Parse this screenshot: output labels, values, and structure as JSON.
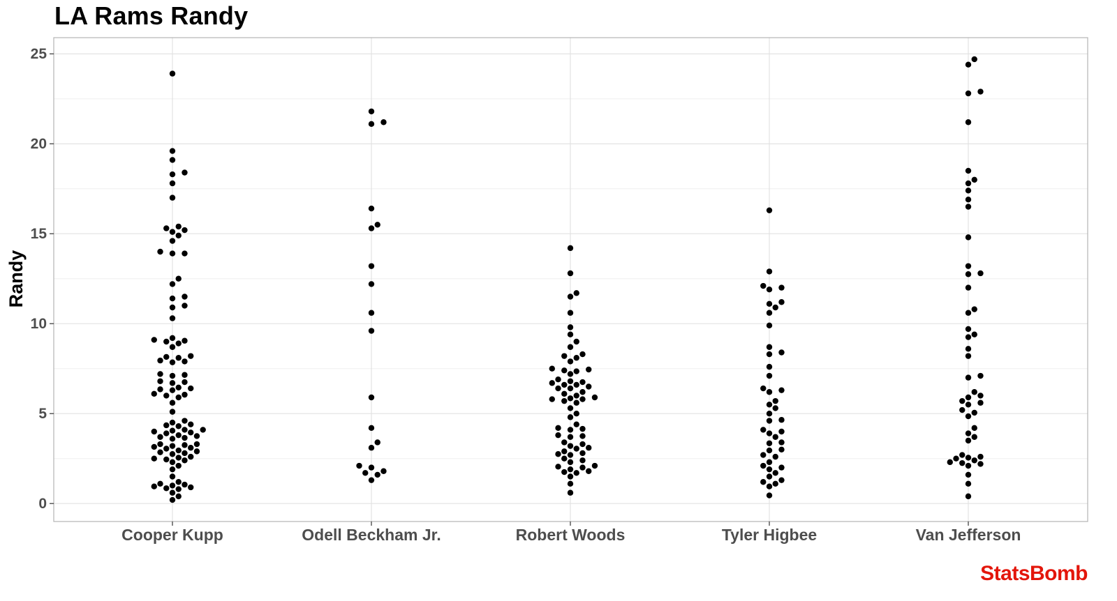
{
  "chart_data": {
    "type": "scatter",
    "title": "LA Rams Randy",
    "xlabel": "",
    "ylabel": "Randy",
    "ylim": [
      -1,
      25.9
    ],
    "yticks": [
      "0",
      "5",
      "10",
      "15",
      "20",
      "25"
    ],
    "categories": [
      "Cooper Kupp",
      "Odell Beckham Jr.",
      "Robert Woods",
      "Tyler Higbee",
      "Van Jefferson"
    ],
    "grid": true,
    "legend": "none",
    "point_color": "#000000",
    "series": [
      {
        "values": [
          23.9,
          19.6,
          19.1,
          18.4,
          18.3,
          17.8,
          17.0,
          15.4,
          15.3,
          15.2,
          15.1,
          14.9,
          14.6,
          14.0,
          13.9,
          13.9,
          12.5,
          12.2,
          11.5,
          11.4,
          11.0,
          10.9,
          10.3,
          9.2,
          9.1,
          9.05,
          9.0,
          8.9,
          8.7,
          8.2,
          8.15,
          8.1,
          7.95,
          7.9,
          7.85,
          7.2,
          7.15,
          7.1,
          6.8,
          6.75,
          6.7,
          6.45,
          6.4,
          6.35,
          6.3,
          6.1,
          6.05,
          6.0,
          5.9,
          5.6,
          5.1,
          4.6,
          4.5,
          4.4,
          4.35,
          4.3,
          4.1,
          4.1,
          4.05,
          4.0,
          3.95,
          3.9,
          3.8,
          3.75,
          3.7,
          3.65,
          3.6,
          3.3,
          3.3,
          3.25,
          3.2,
          3.15,
          3.1,
          3.05,
          2.95,
          2.9,
          2.85,
          2.8,
          2.75,
          2.6,
          2.55,
          2.5,
          2.45,
          2.4,
          2.3,
          2.1,
          1.9,
          1.5,
          1.2,
          1.1,
          1.05,
          1.0,
          0.95,
          0.9,
          0.85,
          0.8,
          0.6,
          0.4,
          0.2
        ]
      },
      {
        "values": [
          21.8,
          21.2,
          21.1,
          16.4,
          15.5,
          15.3,
          13.2,
          12.2,
          10.6,
          9.6,
          5.9,
          4.2,
          3.4,
          3.1,
          2.1,
          2.0,
          1.8,
          1.7,
          1.6,
          1.3
        ]
      },
      {
        "values": [
          14.2,
          12.8,
          11.7,
          11.5,
          10.6,
          9.8,
          9.4,
          9.0,
          8.7,
          8.3,
          8.2,
          8.1,
          7.9,
          7.5,
          7.45,
          7.4,
          7.35,
          7.2,
          6.9,
          6.8,
          6.75,
          6.7,
          6.6,
          6.6,
          6.5,
          6.4,
          6.4,
          6.2,
          6.1,
          6.0,
          5.9,
          5.85,
          5.8,
          5.8,
          5.7,
          5.6,
          5.3,
          5.0,
          4.8,
          4.4,
          4.2,
          4.15,
          4.1,
          3.8,
          3.75,
          3.7,
          3.4,
          3.3,
          3.2,
          3.1,
          3.05,
          2.9,
          2.8,
          2.75,
          2.7,
          2.5,
          2.4,
          2.3,
          2.1,
          2.05,
          2.0,
          1.9,
          1.8,
          1.75,
          1.7,
          1.5,
          1.1,
          0.6
        ]
      },
      {
        "values": [
          16.3,
          12.9,
          12.1,
          12.0,
          11.9,
          11.2,
          11.1,
          10.9,
          10.6,
          9.9,
          8.7,
          8.4,
          8.3,
          7.6,
          7.1,
          6.4,
          6.3,
          6.2,
          5.7,
          5.5,
          5.3,
          5.0,
          4.65,
          4.6,
          4.1,
          4.0,
          3.9,
          3.7,
          3.4,
          3.35,
          3.0,
          2.95,
          2.7,
          2.6,
          2.3,
          2.1,
          2.0,
          1.9,
          1.7,
          1.5,
          1.3,
          1.2,
          1.1,
          0.95,
          0.45
        ]
      },
      {
        "values": [
          24.7,
          24.4,
          22.9,
          22.8,
          21.2,
          18.5,
          18.0,
          17.8,
          17.4,
          16.9,
          16.5,
          14.8,
          13.2,
          12.8,
          12.75,
          12.0,
          10.8,
          10.6,
          9.7,
          9.4,
          9.25,
          8.6,
          8.2,
          7.1,
          7.0,
          6.2,
          6.0,
          5.9,
          5.7,
          5.6,
          5.5,
          5.2,
          5.05,
          4.85,
          4.2,
          3.9,
          3.7,
          3.5,
          2.7,
          2.6,
          2.55,
          2.5,
          2.4,
          2.3,
          2.25,
          2.2,
          2.1,
          1.6,
          1.1,
          0.4
        ]
      }
    ]
  },
  "brand": "StatsBomb"
}
